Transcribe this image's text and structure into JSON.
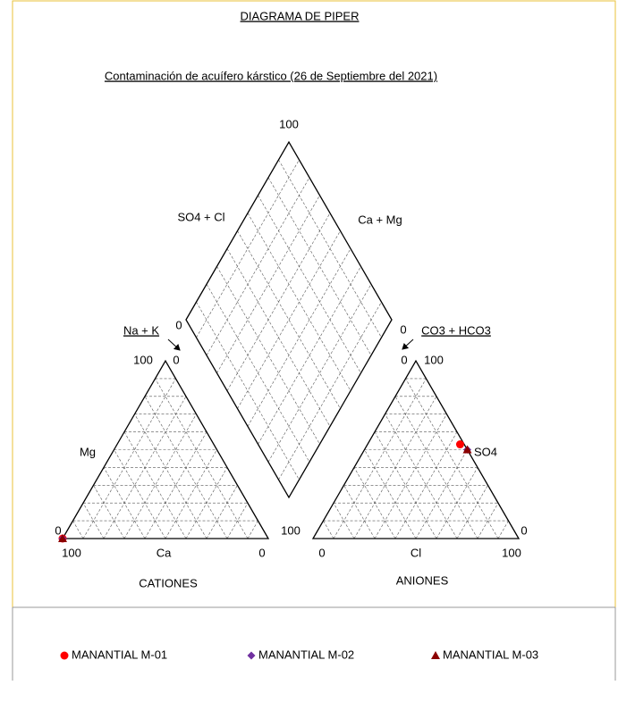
{
  "chart_data": {
    "type": "piper",
    "title": "DIAGRAMA DE PIPER",
    "subtitle": "Contaminación  de  acuífero  kárstico  (26  de  Septiembre  del  2021)",
    "labels": {
      "so4_cl": "SO4 + Cl",
      "ca_mg": "Ca + Mg",
      "na_k": "Na + K",
      "co3_hco3": "CO3 + HCO3",
      "mg": "Mg",
      "ca": "Ca",
      "cl": "Cl",
      "so4": "SO4",
      "cations": "CATIONES",
      "anions": "ANIONES"
    },
    "diamond_ticks": [
      100,
      0,
      0,
      100
    ],
    "cation_ticks": [
      100,
      0,
      0,
      100,
      0
    ],
    "anion_ticks": [
      0,
      100,
      0,
      100,
      0
    ],
    "series": [
      {
        "name": "MANANTIAL M-01",
        "color": "#ff0000",
        "marker": "circle",
        "cations": {
          "ca": 100,
          "mg": 0,
          "nak": 0
        },
        "anions": {
          "hco3": 2,
          "so4": 53,
          "cl": 45
        }
      },
      {
        "name": "MANANTIAL M-02",
        "color": "#7030a0",
        "marker": "diamond",
        "cations": {
          "ca": 100,
          "mg": 0,
          "nak": 0
        },
        "anions": {
          "hco3": 0,
          "so4": 50,
          "cl": 50
        }
      },
      {
        "name": "MANANTIAL M-03",
        "color": "#8b0000",
        "marker": "triangle",
        "cations": {
          "ca": 100,
          "mg": 0,
          "nak": 0
        },
        "anions": {
          "hco3": 0,
          "so4": 50,
          "cl": 50
        }
      }
    ]
  }
}
